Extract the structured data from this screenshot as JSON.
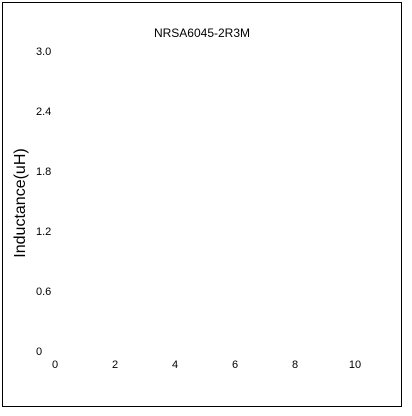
{
  "chart_data": {
    "type": "line",
    "title": "NRSA6045-2R3M",
    "xlabel": "",
    "ylabel": "Inductance(uH)",
    "xlim": [
      0,
      10
    ],
    "ylim": [
      0,
      3.0
    ],
    "x_ticks": [
      "0",
      "2",
      "4",
      "6",
      "8",
      "10"
    ],
    "y_ticks": [
      "3.0",
      "2.4",
      "1.8",
      "1.2",
      "0.6",
      "0"
    ],
    "grid": false,
    "series": []
  }
}
